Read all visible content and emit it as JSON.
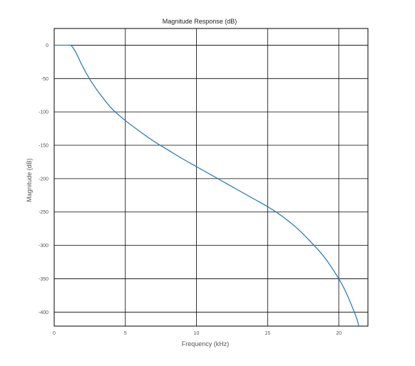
{
  "chart_data": {
    "type": "line",
    "title": "Magnitude Response (dB)",
    "xlabel": "Frequency (kHz)",
    "ylabel": "Magnitude (dB)",
    "xlim": [
      0,
      22.05
    ],
    "ylim": [
      -421,
      25
    ],
    "xticks": [
      0,
      5,
      10,
      15,
      20
    ],
    "xtick_labels": [
      "0",
      "5",
      "10",
      "15",
      "20"
    ],
    "yticks": [
      0,
      -50,
      -100,
      -150,
      -200,
      -250,
      -300,
      -350,
      -400
    ],
    "ytick_labels": [
      "0",
      "-50",
      "-100",
      "-150",
      "-200",
      "-250",
      "-300",
      "-350",
      "-400"
    ],
    "grid": true,
    "colors": {
      "line": "#1f77b4",
      "grid": "#000000",
      "axes": "#000000"
    },
    "series": [
      {
        "x": [
          0,
          0.5,
          1.0,
          1.15,
          1.3,
          1.6,
          2.0,
          2.5,
          3.0,
          3.5,
          4.0,
          4.5,
          5.0,
          6.0,
          7.0,
          8.0,
          9.0,
          10.0,
          11.0,
          12.0,
          13.0,
          14.0,
          15.0,
          16.0,
          17.0,
          18.0,
          19.0,
          20.0,
          20.5,
          21.0,
          21.3,
          21.4
        ],
        "y": [
          0,
          0,
          0,
          0,
          -3,
          -14,
          -32,
          -51,
          -67,
          -81,
          -94,
          -104,
          -113,
          -129,
          -144,
          -157,
          -170,
          -182,
          -194,
          -206,
          -218,
          -230,
          -242,
          -256,
          -273,
          -294,
          -318,
          -350,
          -370,
          -395,
          -412,
          -421
        ]
      }
    ]
  }
}
